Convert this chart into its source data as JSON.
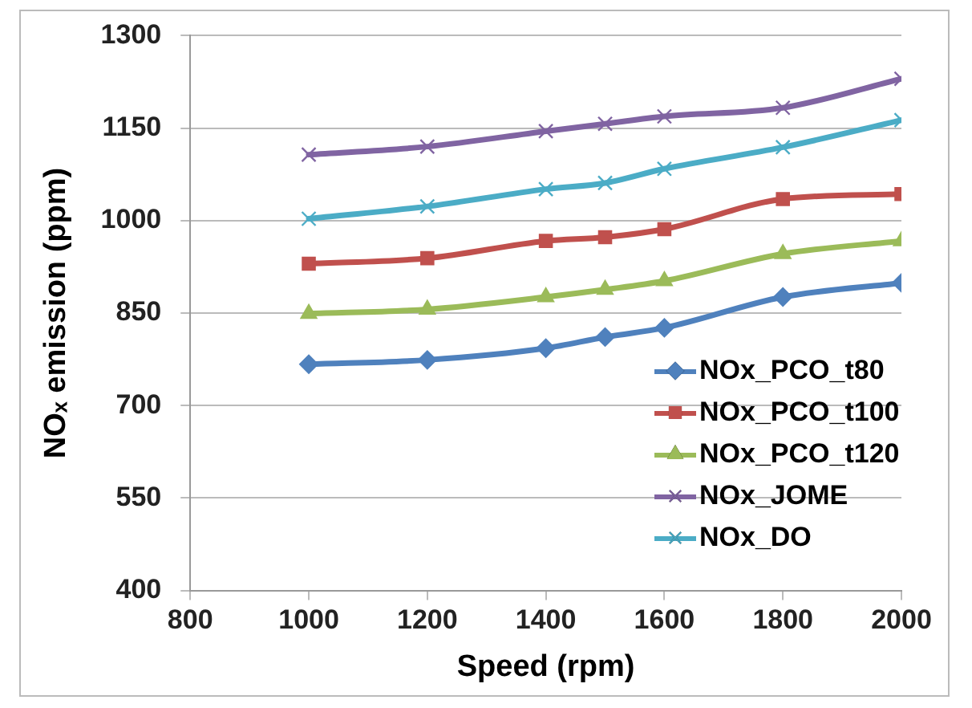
{
  "chart_data": {
    "type": "line",
    "xlabel": "Speed (rpm)",
    "ylabel": "NOₓ emission (ppm)",
    "x": [
      1000,
      1200,
      1400,
      1500,
      1600,
      1800,
      2000
    ],
    "xlim": [
      800,
      2000
    ],
    "xticks": [
      800,
      1000,
      1200,
      1400,
      1600,
      1800,
      2000
    ],
    "ylim": [
      400,
      1300
    ],
    "yticks": [
      400,
      550,
      700,
      850,
      1000,
      1150,
      1300
    ],
    "grid": "y",
    "legend": "bottom right",
    "line_style": "solid",
    "series": [
      {
        "name": "NOx_PCO_t80",
        "color": "#4f81bd",
        "marker": "diamond",
        "values": [
          767,
          774,
          793,
          811,
          826,
          876,
          899
        ]
      },
      {
        "name": "NOx_PCO_t100",
        "color": "#c0504d",
        "marker": "square",
        "values": [
          930,
          939,
          967,
          973,
          986,
          1035,
          1043
        ]
      },
      {
        "name": "NOx_PCO_t120",
        "color": "#9bbb59",
        "marker": "triangle",
        "values": [
          849,
          856,
          876,
          888,
          902,
          946,
          967
        ]
      },
      {
        "name": "NOx_JOME",
        "color": "#8064a2",
        "marker": "cross",
        "values": [
          1107,
          1120,
          1145,
          1157,
          1169,
          1183,
          1230
        ]
      },
      {
        "name": "NOx_DO",
        "color": "#4bacc6",
        "marker": "cross",
        "values": [
          1003,
          1023,
          1051,
          1061,
          1084,
          1119,
          1163
        ]
      }
    ]
  }
}
